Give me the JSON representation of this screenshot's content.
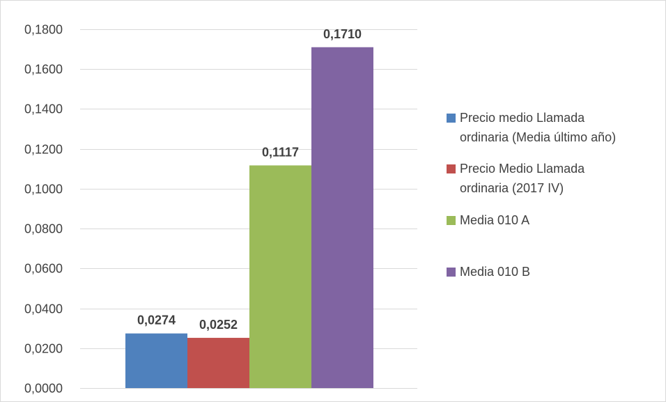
{
  "chart_data": {
    "type": "bar",
    "title": "",
    "xlabel": "",
    "ylabel": "",
    "ylim": [
      0,
      0.18
    ],
    "y_ticks": [
      "0,0000",
      "0,0200",
      "0,0400",
      "0,0600",
      "0,0800",
      "0,1000",
      "0,1200",
      "0,1400",
      "0,1600",
      "0,1800"
    ],
    "grid": true,
    "legend_position": "right",
    "series": [
      {
        "name": "Precio medio Llamada ordinaria (Media último año)",
        "legend_lines": [
          "Precio medio Llamada",
          "ordinaria (Media último año)"
        ],
        "value": 0.0274,
        "label": "0,0274",
        "color": "#4f81bd"
      },
      {
        "name": "Precio Medio Llamada ordinaria (2017 IV)",
        "legend_lines": [
          "Precio Medio Llamada",
          "ordinaria (2017 IV)"
        ],
        "value": 0.0252,
        "label": "0,0252",
        "color": "#c0504d"
      },
      {
        "name": "Media 010 A",
        "legend_lines": [
          "Media 010 A"
        ],
        "value": 0.1117,
        "label": "0,1117",
        "color": "#9bbb59"
      },
      {
        "name": "Media 010 B",
        "legend_lines": [
          "Media 010 B"
        ],
        "value": 0.171,
        "label": "0,1710",
        "color": "#8064a2"
      }
    ]
  }
}
